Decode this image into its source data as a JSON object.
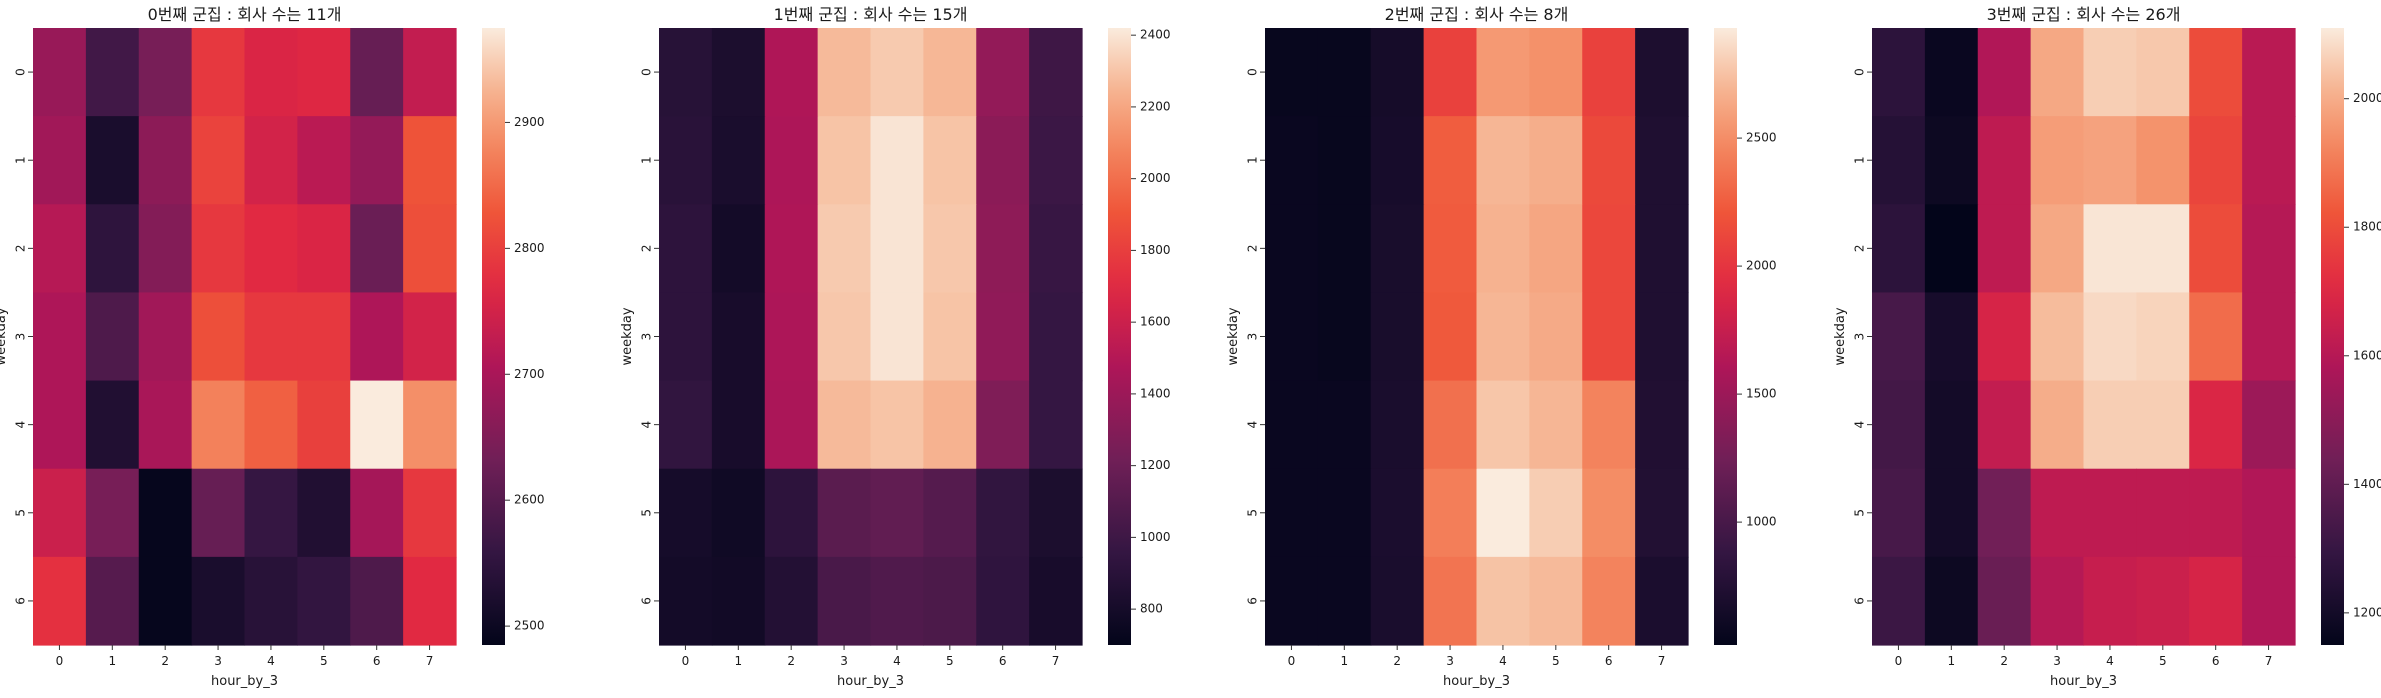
{
  "chart_data": [
    {
      "type": "heatmap",
      "title": "0번째 군집 : 회사 수는 11개",
      "xlabel": "hour_by_3",
      "ylabel": "weekday",
      "x": [
        "0",
        "1",
        "2",
        "3",
        "4",
        "5",
        "6",
        "7"
      ],
      "y": [
        "0",
        "1",
        "2",
        "3",
        "4",
        "5",
        "6"
      ],
      "vmin": 2485,
      "vmax": 2975,
      "colorbar_ticks": [
        2500,
        2600,
        2700,
        2800,
        2900
      ],
      "values": [
        [
          2680,
          2575,
          2640,
          2790,
          2760,
          2765,
          2620,
          2730
        ],
        [
          2690,
          2520,
          2665,
          2805,
          2750,
          2720,
          2675,
          2825
        ],
        [
          2715,
          2550,
          2655,
          2790,
          2770,
          2760,
          2625,
          2820
        ],
        [
          2705,
          2590,
          2690,
          2820,
          2790,
          2790,
          2705,
          2750
        ],
        [
          2705,
          2530,
          2700,
          2875,
          2840,
          2800,
          2975,
          2890
        ],
        [
          2740,
          2640,
          2490,
          2620,
          2560,
          2530,
          2695,
          2790
        ],
        [
          2780,
          2600,
          2490,
          2520,
          2540,
          2555,
          2590,
          2770
        ]
      ]
    },
    {
      "type": "heatmap",
      "title": "1번째 군집 : 회사 수는 15개",
      "xlabel": "hour_by_3",
      "ylabel": "weekday",
      "x": [
        "0",
        "1",
        "2",
        "3",
        "4",
        "5",
        "6",
        "7"
      ],
      "y": [
        "0",
        "1",
        "2",
        "3",
        "4",
        "5",
        "6"
      ],
      "vmin": 700,
      "vmax": 2420,
      "colorbar_ticks": [
        800,
        1000,
        1200,
        1400,
        1600,
        1800,
        2000,
        2200,
        2400
      ],
      "values": [
        [
          890,
          830,
          1480,
          2270,
          2320,
          2260,
          1360,
          1000
        ],
        [
          900,
          820,
          1470,
          2300,
          2400,
          2300,
          1330,
          990
        ],
        [
          920,
          790,
          1480,
          2320,
          2400,
          2310,
          1340,
          970
        ],
        [
          920,
          810,
          1470,
          2310,
          2400,
          2300,
          1350,
          960
        ],
        [
          940,
          810,
          1460,
          2270,
          2300,
          2240,
          1280,
          960
        ],
        [
          800,
          770,
          920,
          1120,
          1150,
          1100,
          940,
          830
        ],
        [
          790,
          780,
          870,
          1050,
          1080,
          1060,
          930,
          810
        ]
      ]
    },
    {
      "type": "heatmap",
      "title": "2번째 군집 : 회사 수는 8개",
      "xlabel": "hour_by_3",
      "ylabel": "weekday",
      "x": [
        "0",
        "1",
        "2",
        "3",
        "4",
        "5",
        "6",
        "7"
      ],
      "y": [
        "0",
        "1",
        "2",
        "3",
        "4",
        "5",
        "6"
      ],
      "vmin": 520,
      "vmax": 2930,
      "colorbar_ticks": [
        1000,
        1500,
        2000,
        2500
      ],
      "values": [
        [
          560,
          560,
          660,
          2080,
          2560,
          2520,
          2080,
          710
        ],
        [
          570,
          560,
          670,
          2250,
          2700,
          2660,
          2130,
          730
        ],
        [
          570,
          560,
          680,
          2240,
          2680,
          2620,
          2120,
          730
        ],
        [
          570,
          560,
          680,
          2230,
          2700,
          2640,
          2120,
          730
        ],
        [
          570,
          570,
          690,
          2350,
          2770,
          2700,
          2450,
          740
        ],
        [
          570,
          570,
          700,
          2420,
          2930,
          2800,
          2500,
          750
        ],
        [
          570,
          570,
          690,
          2370,
          2760,
          2720,
          2450,
          700
        ]
      ]
    },
    {
      "type": "heatmap",
      "title": "3번째 군집 : 회사 수는 26개",
      "xlabel": "hour_by_3",
      "ylabel": "weekday",
      "x": [
        "0",
        "1",
        "2",
        "3",
        "4",
        "5",
        "6",
        "7"
      ],
      "y": [
        "0",
        "1",
        "2",
        "3",
        "4",
        "5",
        "6"
      ],
      "vmin": 1150,
      "vmax": 2110,
      "colorbar_ticks": [
        1200,
        1400,
        1600,
        1800,
        2000
      ],
      "values": [
        [
          1270,
          1170,
          1590,
          1990,
          2060,
          2050,
          1800,
          1610
        ],
        [
          1250,
          1180,
          1620,
          1970,
          1980,
          1950,
          1780,
          1610
        ],
        [
          1270,
          1150,
          1620,
          1990,
          2100,
          2100,
          1800,
          1600
        ],
        [
          1340,
          1210,
          1680,
          2030,
          2080,
          2070,
          1870,
          1600
        ],
        [
          1330,
          1200,
          1630,
          2000,
          2060,
          2060,
          1690,
          1540
        ],
        [
          1340,
          1200,
          1440,
          1620,
          1620,
          1620,
          1620,
          1590
        ],
        [
          1310,
          1180,
          1420,
          1600,
          1640,
          1650,
          1680,
          1590
        ]
      ]
    }
  ]
}
